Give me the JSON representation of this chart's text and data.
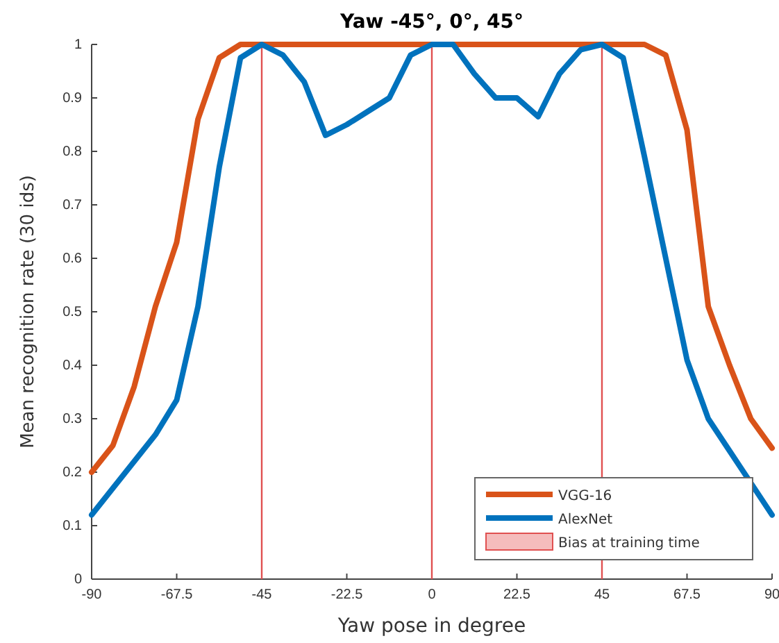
{
  "chart_data": {
    "type": "line",
    "title": "Yaw -45°, 0°, 45°",
    "xlabel": "Yaw pose in degree",
    "ylabel": "Mean recognition rate (30 ids)",
    "x": [
      -90,
      -84.375,
      -78.75,
      -73.125,
      -67.5,
      -61.875,
      -56.25,
      -50.625,
      -45,
      -39.375,
      -33.75,
      -28.125,
      -22.5,
      -16.875,
      -11.25,
      -5.625,
      0,
      5.625,
      11.25,
      16.875,
      22.5,
      28.125,
      33.75,
      39.375,
      45,
      50.625,
      56.25,
      61.875,
      67.5,
      73.125,
      78.75,
      84.375,
      90
    ],
    "series": [
      {
        "name": "VGG-16",
        "color": "#d95319",
        "values": [
          0.2,
          0.25,
          0.36,
          0.51,
          0.63,
          0.86,
          0.975,
          1,
          1,
          1,
          1,
          1,
          1,
          1,
          1,
          1,
          1,
          1,
          1,
          1,
          1,
          1,
          1,
          1,
          1,
          1,
          1,
          0.98,
          0.84,
          0.51,
          0.4,
          0.3,
          0.245
        ]
      },
      {
        "name": "AlexNet",
        "color": "#0072bd",
        "values": [
          0.12,
          0.17,
          0.22,
          0.27,
          0.335,
          0.51,
          0.77,
          0.975,
          1,
          0.98,
          0.93,
          0.83,
          0.85,
          0.875,
          0.9,
          0.98,
          1,
          1,
          0.945,
          0.9,
          0.9,
          0.865,
          0.945,
          0.99,
          1,
          0.975,
          0.79,
          0.6,
          0.41,
          0.3,
          0.24,
          0.18,
          0.12
        ]
      }
    ],
    "annotations": [
      "Bias at training time"
    ],
    "ref_lines": [
      {
        "axis": "x",
        "value": -45,
        "color": "#e05050"
      },
      {
        "axis": "x",
        "value": 0,
        "color": "#e05050"
      },
      {
        "axis": "x",
        "value": 45,
        "color": "#e05050"
      }
    ],
    "xlim": [
      -90,
      90
    ],
    "xticks": [
      -90,
      -67.5,
      -45,
      -22.5,
      0,
      22.5,
      45,
      67.5,
      90
    ],
    "ylim": [
      0,
      1
    ],
    "yticks": [
      0,
      0.1,
      0.2,
      0.3,
      0.4,
      0.5,
      0.6,
      0.7,
      0.8,
      0.9,
      1
    ],
    "legend": "bottom right",
    "grid": false
  }
}
